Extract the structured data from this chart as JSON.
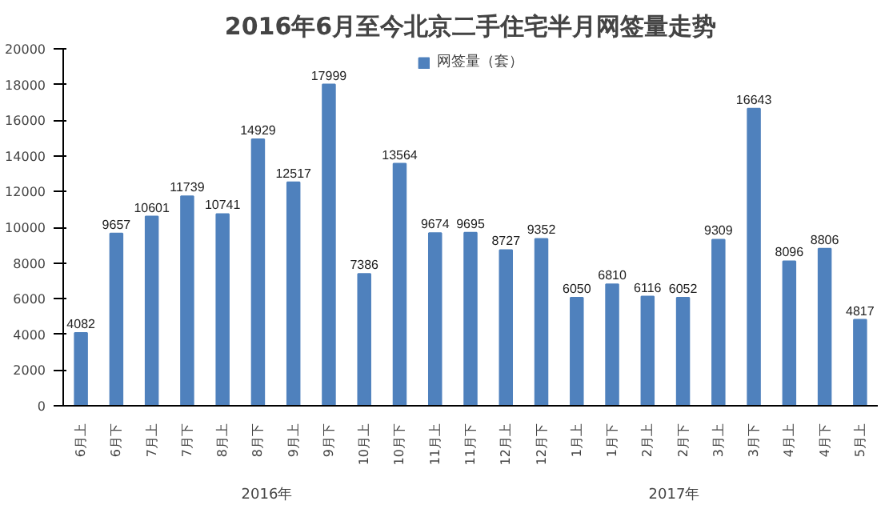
{
  "chart_data": {
    "type": "bar",
    "title": "2016年6月至今北京二手住宅半月网签量走势",
    "categories": [
      "6月上",
      "6月下",
      "7月上",
      "7月下",
      "8月上",
      "8月下",
      "9月上",
      "9月下",
      "10月上",
      "10月下",
      "11月上",
      "11月下",
      "12月上",
      "12月下",
      "1月上",
      "1月下",
      "2月上",
      "2月下",
      "3月上",
      "3月下",
      "4月上",
      "4月下",
      "5月上"
    ],
    "series": [
      {
        "name": "网签量（套）",
        "color": "#4f81bd",
        "values": [
          4082,
          9657,
          10601,
          11739,
          10741,
          14929,
          12517,
          17999,
          7386,
          13564,
          9674,
          9695,
          8727,
          9352,
          6050,
          6810,
          6116,
          6052,
          9309,
          16643,
          8096,
          8806,
          4817
        ]
      }
    ],
    "ylim": [
      0,
      20000
    ],
    "yticks": [
      0,
      2000,
      4000,
      6000,
      8000,
      10000,
      12000,
      14000,
      16000,
      18000,
      20000
    ],
    "annotations": [
      "2016年",
      "2017年"
    ],
    "data_labels": true,
    "grid": false,
    "legend": "top"
  }
}
